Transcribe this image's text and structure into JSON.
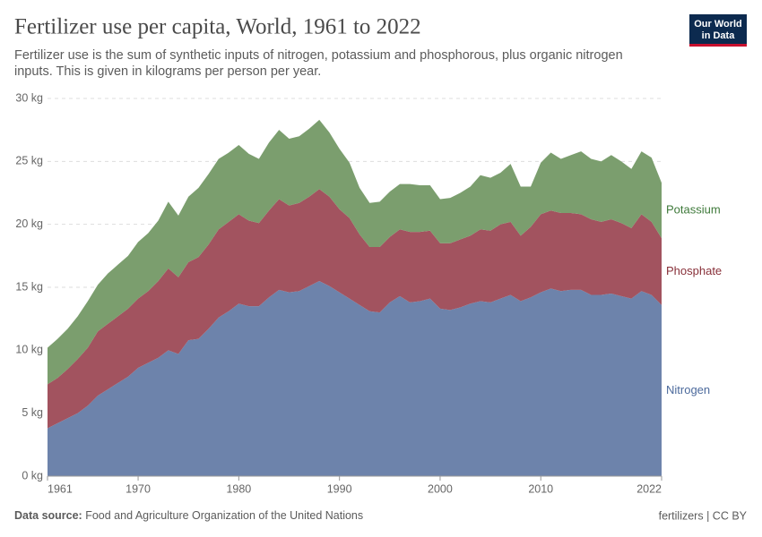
{
  "logo": [
    "Our World",
    "in Data"
  ],
  "chart_data": {
    "type": "stacked-area",
    "title": "Fertilizer use per capita, World, 1961 to 2022",
    "subtitle": [
      "Fertilizer use is the sum of synthetic inputs of nitrogen, potassium and phosphorous, plus organic nitrogen",
      "inputs. This is given in kilograms per person per year."
    ],
    "source_label": "Data source:",
    "source": "Food and Agriculture Organization of the United Nations",
    "license": "fertilizers | CC BY",
    "x": [
      1961,
      1962,
      1963,
      1964,
      1965,
      1966,
      1967,
      1968,
      1969,
      1970,
      1971,
      1972,
      1973,
      1974,
      1975,
      1976,
      1977,
      1978,
      1979,
      1980,
      1981,
      1982,
      1983,
      1984,
      1985,
      1986,
      1987,
      1988,
      1989,
      1990,
      1991,
      1992,
      1993,
      1994,
      1995,
      1996,
      1997,
      1998,
      1999,
      2000,
      2001,
      2002,
      2003,
      2004,
      2005,
      2006,
      2007,
      2008,
      2009,
      2010,
      2011,
      2012,
      2013,
      2014,
      2015,
      2016,
      2017,
      2018,
      2019,
      2020,
      2021,
      2022
    ],
    "xlim": [
      1961,
      2022
    ],
    "xticks": [
      1961,
      1970,
      1980,
      1990,
      2000,
      2010,
      2022
    ],
    "ylim": [
      0,
      30
    ],
    "yticks": [
      {
        "value": 0,
        "label": "0 kg"
      },
      {
        "value": 5,
        "label": "5 kg"
      },
      {
        "value": 10,
        "label": "10 kg"
      },
      {
        "value": 15,
        "label": "15 kg"
      },
      {
        "value": 20,
        "label": "20 kg"
      },
      {
        "value": 25,
        "label": "25 kg"
      },
      {
        "value": 30,
        "label": "30 kg"
      }
    ],
    "grid": true,
    "series": [
      {
        "name": "Nitrogen",
        "color": "#6d83ab",
        "label_color": "#4c6a9c",
        "values": [
          3.8,
          4.2,
          4.6,
          5.0,
          5.6,
          6.4,
          6.9,
          7.4,
          7.9,
          8.6,
          9.0,
          9.4,
          10.0,
          9.7,
          10.8,
          10.9,
          11.7,
          12.6,
          13.1,
          13.7,
          13.5,
          13.5,
          14.2,
          14.8,
          14.6,
          14.7,
          15.1,
          15.5,
          15.1,
          14.6,
          14.1,
          13.6,
          13.1,
          13.0,
          13.8,
          14.3,
          13.8,
          13.9,
          14.1,
          13.3,
          13.2,
          13.4,
          13.7,
          13.9,
          13.8,
          14.1,
          14.4,
          13.9,
          14.2,
          14.6,
          14.9,
          14.7,
          14.8,
          14.8,
          14.4,
          14.4,
          14.5,
          14.3,
          14.1,
          14.7,
          14.4,
          13.6
        ]
      },
      {
        "name": "Phosphate",
        "color": "#a2535f",
        "label_color": "#883039",
        "values": [
          3.5,
          3.6,
          3.9,
          4.3,
          4.6,
          5.1,
          5.2,
          5.3,
          5.4,
          5.5,
          5.7,
          6.1,
          6.5,
          6.1,
          6.2,
          6.5,
          6.7,
          7.0,
          7.1,
          7.1,
          6.8,
          6.6,
          6.9,
          7.2,
          6.9,
          7.0,
          7.1,
          7.3,
          7.1,
          6.6,
          6.4,
          5.6,
          5.1,
          5.2,
          5.2,
          5.3,
          5.6,
          5.5,
          5.4,
          5.2,
          5.3,
          5.4,
          5.4,
          5.7,
          5.7,
          5.9,
          5.8,
          5.2,
          5.6,
          6.2,
          6.2,
          6.2,
          6.1,
          6.0,
          6.0,
          5.8,
          5.9,
          5.8,
          5.6,
          6.1,
          5.8,
          5.3
        ]
      },
      {
        "name": "Potassium",
        "color": "#7b9e6e",
        "label_color": "#3f7a3b",
        "values": [
          2.9,
          3.1,
          3.2,
          3.4,
          3.7,
          3.7,
          4.0,
          4.1,
          4.2,
          4.5,
          4.6,
          4.8,
          5.3,
          4.9,
          5.2,
          5.5,
          5.6,
          5.6,
          5.5,
          5.5,
          5.3,
          5.1,
          5.4,
          5.5,
          5.3,
          5.3,
          5.4,
          5.5,
          5.1,
          4.8,
          4.4,
          3.7,
          3.5,
          3.6,
          3.6,
          3.6,
          3.8,
          3.7,
          3.6,
          3.5,
          3.6,
          3.7,
          3.9,
          4.3,
          4.2,
          4.1,
          4.6,
          3.9,
          3.2,
          4.1,
          4.6,
          4.3,
          4.6,
          5.0,
          4.8,
          4.8,
          5.1,
          4.9,
          4.7,
          5.0,
          5.1,
          4.4
        ]
      }
    ]
  }
}
